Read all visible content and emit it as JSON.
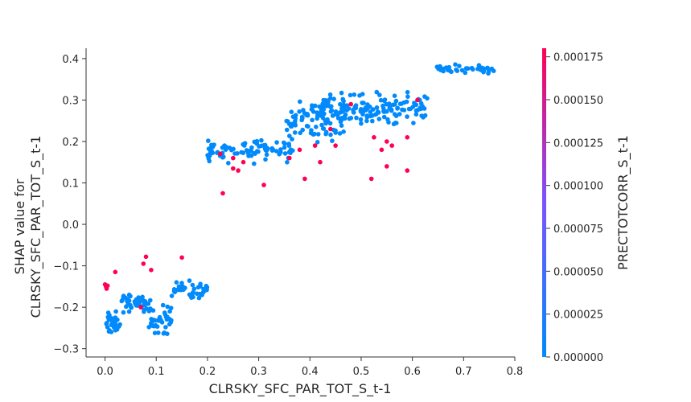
{
  "chart_data": {
    "type": "scatter",
    "title": "",
    "xlabel": "CLRSKY_SFC_PAR_TOT_S_t-1",
    "ylabel_lines": [
      "SHAP value for",
      "CLRSKY_SFC_PAR_TOT_S_t-1"
    ],
    "xlim": [
      -0.037,
      0.8
    ],
    "ylim": [
      -0.32,
      0.425
    ],
    "xticks": [
      "0.0",
      "0.1",
      "0.2",
      "0.3",
      "0.4",
      "0.5",
      "0.6",
      "0.7",
      "0.8"
    ],
    "yticks": [
      "−0.3",
      "−0.2",
      "−0.1",
      "0.0",
      "0.1",
      "0.2",
      "0.3",
      "0.4"
    ],
    "xtick_values": [
      0.0,
      0.1,
      0.2,
      0.3,
      0.4,
      0.5,
      0.6,
      0.7,
      0.8
    ],
    "ytick_values": [
      -0.3,
      -0.2,
      -0.1,
      0.0,
      0.1,
      0.2,
      0.3,
      0.4
    ],
    "grid": false,
    "colorbar": {
      "label": "PRECTOTCORR_S_t-1",
      "range": [
        0,
        0.00018
      ],
      "ticks": [
        "0.000000",
        "0.000025",
        "0.000050",
        "0.000075",
        "0.000100",
        "0.000125",
        "0.000150",
        "0.000175"
      ],
      "tick_values": [
        0,
        2.5e-05,
        5e-05,
        7.5e-05,
        0.0001,
        0.000125,
        0.00015,
        0.000175
      ],
      "low_color": "#008afb",
      "mid_color": "#7c52ff",
      "high_color": "#ff0052"
    },
    "clusters": [
      {
        "x_range": [
          0.0,
          0.03
        ],
        "y_center": -0.24,
        "y_spread": 0.04,
        "count": 35
      },
      {
        "x_range": [
          0.03,
          0.09
        ],
        "y_center": -0.19,
        "y_spread": 0.03,
        "count": 45
      },
      {
        "x_range": [
          0.085,
          0.13
        ],
        "y_center": -0.23,
        "y_spread": 0.05,
        "count": 40
      },
      {
        "x_range": [
          0.13,
          0.2
        ],
        "y_center": -0.16,
        "y_spread": 0.03,
        "count": 40
      },
      {
        "x_range": [
          0.2,
          0.37
        ],
        "y_center": 0.18,
        "y_spread": 0.04,
        "count": 90
      },
      {
        "x_range": [
          0.35,
          0.47
        ],
        "y_center": 0.25,
        "y_spread": 0.06,
        "count": 80
      },
      {
        "x_range": [
          0.4,
          0.63
        ],
        "y_center": 0.28,
        "y_spread": 0.05,
        "count": 150
      },
      {
        "x_range": [
          0.64,
          0.76
        ],
        "y_center": 0.375,
        "y_spread": 0.015,
        "count": 40
      }
    ],
    "high_points": [
      [
        0.0,
        -0.145
      ],
      [
        0.002,
        -0.15
      ],
      [
        0.005,
        -0.148
      ],
      [
        0.003,
        -0.155
      ],
      [
        0.02,
        -0.115
      ],
      [
        0.075,
        -0.095
      ],
      [
        0.08,
        -0.078
      ],
      [
        0.09,
        -0.11
      ],
      [
        0.07,
        -0.2
      ],
      [
        0.15,
        -0.08
      ],
      [
        0.225,
        0.17
      ],
      [
        0.23,
        0.075
      ],
      [
        0.25,
        0.16
      ],
      [
        0.25,
        0.135
      ],
      [
        0.26,
        0.13
      ],
      [
        0.31,
        0.095
      ],
      [
        0.39,
        0.11
      ],
      [
        0.41,
        0.19
      ],
      [
        0.42,
        0.15
      ],
      [
        0.44,
        0.23
      ],
      [
        0.45,
        0.19
      ],
      [
        0.48,
        0.29
      ],
      [
        0.52,
        0.11
      ],
      [
        0.525,
        0.21
      ],
      [
        0.54,
        0.18
      ],
      [
        0.55,
        0.2
      ],
      [
        0.55,
        0.14
      ],
      [
        0.56,
        0.19
      ],
      [
        0.59,
        0.21
      ],
      [
        0.59,
        0.13
      ],
      [
        0.61,
        0.3
      ],
      [
        0.38,
        0.18
      ],
      [
        0.36,
        0.16
      ],
      [
        0.27,
        0.15
      ]
    ]
  }
}
